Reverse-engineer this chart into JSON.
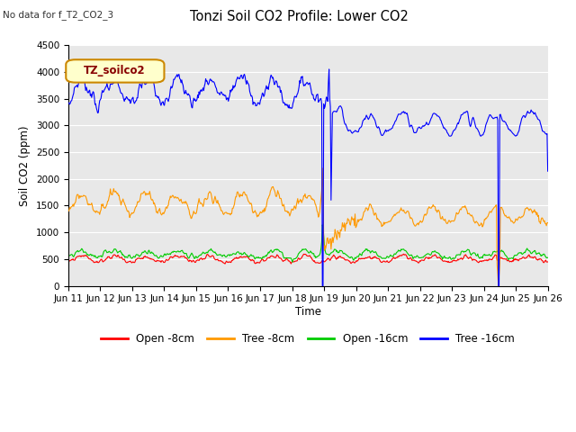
{
  "title": "Tonzi Soil CO2 Profile: Lower CO2",
  "subtitle": "No data for f_T2_CO2_3",
  "ylabel": "Soil CO2 (ppm)",
  "xlabel": "Time",
  "ylim": [
    0,
    4500
  ],
  "legend_box_label": "TZ_soilco2",
  "legend_entries": [
    "Open -8cm",
    "Tree -8cm",
    "Open -16cm",
    "Tree -16cm"
  ],
  "legend_colors": [
    "#ff0000",
    "#ff9900",
    "#00cc00",
    "#0000ff"
  ],
  "x_tick_labels": [
    "Jun 11",
    "Jun 12",
    "Jun 13",
    "Jun 14",
    "Jun 15",
    "Jun 16",
    "Jun 17",
    "Jun 18",
    "Jun 19",
    "Jun 20",
    "Jun 21",
    "Jun 22",
    "Jun 23",
    "Jun 24",
    "Jun 25",
    "Jun 26"
  ],
  "y_ticks": [
    0,
    500,
    1000,
    1500,
    2000,
    2500,
    3000,
    3500,
    4000,
    4500
  ],
  "grid_color": "#ffffff",
  "plot_bg": "#e8e8e8",
  "n_days": 15,
  "pts_per_day": 48,
  "spike1_day": 7.95,
  "spike2_day": 13.45,
  "spike1b_day": 8.15
}
